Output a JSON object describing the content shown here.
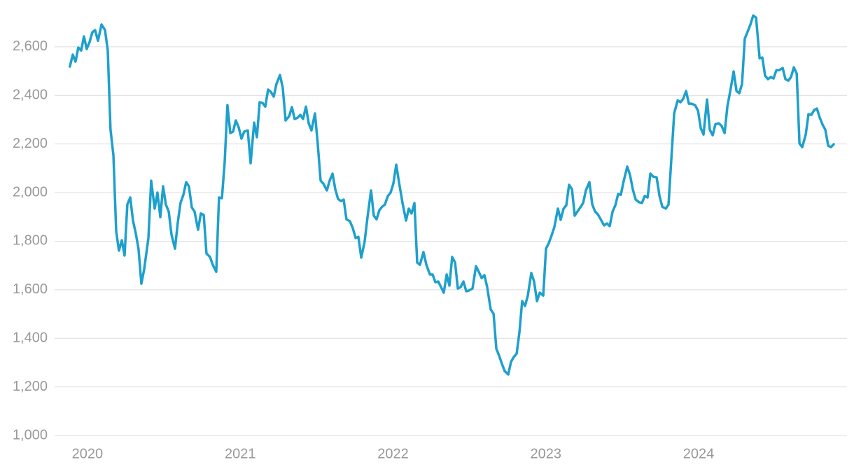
{
  "chart_data": {
    "type": "line",
    "color": "#1ea0cc",
    "grid": true,
    "xlim": [
      2019.785,
      2024.971
    ],
    "xticks": [
      2020,
      2021,
      2022,
      2023,
      2024
    ],
    "ylim": [
      1000,
      2790
    ],
    "yticks": [
      {
        "value": 1000,
        "label": "1,000"
      },
      {
        "value": 1200,
        "label": "1,200"
      },
      {
        "value": 1400,
        "label": "1,400"
      },
      {
        "value": 1600,
        "label": "1,600"
      },
      {
        "value": 1800,
        "label": "1,800"
      },
      {
        "value": 2000,
        "label": "2,000"
      },
      {
        "value": 2200,
        "label": "2,200"
      },
      {
        "value": 2400,
        "label": "2,400"
      },
      {
        "value": 2600,
        "label": "2,600"
      }
    ],
    "x": [
      2019.885,
      2019.904,
      2019.922,
      2019.94,
      2019.959,
      2019.977,
      2019.995,
      2020.014,
      2020.032,
      2020.05,
      2020.069,
      2020.092,
      2020.115,
      2020.133,
      2020.151,
      2020.17,
      2020.188,
      2020.206,
      2020.225,
      2020.243,
      2020.261,
      2020.28,
      2020.298,
      2020.316,
      2020.334,
      2020.353,
      2020.371,
      2020.399,
      2020.417,
      2020.44,
      2020.458,
      2020.477,
      2020.495,
      2020.513,
      2020.532,
      2020.55,
      2020.573,
      2020.591,
      2020.609,
      2020.628,
      2020.646,
      2020.664,
      2020.683,
      2020.701,
      2020.724,
      2020.742,
      2020.761,
      2020.779,
      2020.802,
      2020.82,
      2020.843,
      2020.861,
      2020.88,
      2020.898,
      2020.916,
      2020.935,
      2020.953,
      2020.971,
      2020.99,
      2021.008,
      2021.026,
      2021.049,
      2021.068,
      2021.091,
      2021.109,
      2021.127,
      2021.146,
      2021.164,
      2021.182,
      2021.2,
      2021.219,
      2021.237,
      2021.26,
      2021.278,
      2021.297,
      2021.32,
      2021.338,
      2021.356,
      2021.375,
      2021.393,
      2021.411,
      2021.43,
      2021.448,
      2021.466,
      2021.489,
      2021.507,
      2021.526,
      2021.544,
      2021.567,
      2021.585,
      2021.604,
      2021.622,
      2021.64,
      2021.659,
      2021.677,
      2021.695,
      2021.718,
      2021.737,
      2021.755,
      2021.773,
      2021.792,
      2021.814,
      2021.833,
      2021.856,
      2021.874,
      2021.892,
      2021.911,
      2021.929,
      2021.947,
      2021.966,
      2021.984,
      2022.002,
      2022.021,
      2022.039,
      2022.062,
      2022.085,
      2022.103,
      2022.121,
      2022.14,
      2022.158,
      2022.176,
      2022.199,
      2022.218,
      2022.241,
      2022.259,
      2022.277,
      2022.296,
      2022.314,
      2022.332,
      2022.351,
      2022.369,
      2022.387,
      2022.406,
      2022.424,
      2022.442,
      2022.461,
      2022.479,
      2022.497,
      2022.52,
      2022.543,
      2022.561,
      2022.58,
      2022.598,
      2022.616,
      2022.639,
      2022.658,
      2022.676,
      2022.694,
      2022.713,
      2022.731,
      2022.754,
      2022.772,
      2022.79,
      2022.809,
      2022.827,
      2022.845,
      2022.864,
      2022.882,
      2022.905,
      2022.923,
      2022.942,
      2022.96,
      2022.983,
      2023.001,
      2023.02,
      2023.038,
      2023.056,
      2023.079,
      2023.097,
      2023.116,
      2023.134,
      2023.152,
      2023.171,
      2023.189,
      2023.207,
      2023.226,
      2023.244,
      2023.262,
      2023.285,
      2023.304,
      2023.322,
      2023.34,
      2023.359,
      2023.381,
      2023.4,
      2023.418,
      2023.437,
      2023.455,
      2023.473,
      2023.491,
      2023.51,
      2023.533,
      2023.551,
      2023.569,
      2023.588,
      2023.611,
      2023.629,
      2023.647,
      2023.666,
      2023.684,
      2023.702,
      2023.725,
      2023.744,
      2023.762,
      2023.785,
      2023.803,
      2023.821,
      2023.84,
      2023.863,
      2023.881,
      2023.899,
      2023.918,
      2023.936,
      2023.954,
      2023.977,
      2023.996,
      2024.014,
      2024.032,
      2024.055,
      2024.073,
      2024.092,
      2024.11,
      2024.133,
      2024.151,
      2024.17,
      2024.188,
      2024.211,
      2024.229,
      2024.248,
      2024.266,
      2024.284,
      2024.302,
      2024.321,
      2024.339,
      2024.357,
      2024.376,
      2024.399,
      2024.417,
      2024.435,
      2024.454,
      2024.472,
      2024.49,
      2024.509,
      2024.527,
      2024.55,
      2024.568,
      2024.587,
      2024.605,
      2024.623,
      2024.642,
      2024.66,
      2024.678,
      2024.701,
      2024.719,
      2024.738,
      2024.756,
      2024.774,
      2024.793,
      2024.811,
      2024.829,
      2024.848,
      2024.866,
      2024.884
    ],
    "values": [
      2519,
      2568,
      2539,
      2597,
      2585,
      2643,
      2591,
      2620,
      2660,
      2669,
      2625,
      2692,
      2669,
      2585,
      2259,
      2153,
      1841,
      1761,
      1804,
      1741,
      1951,
      1980,
      1885,
      1833,
      1769,
      1625,
      1683,
      1813,
      2049,
      1934,
      2000,
      1899,
      2026,
      1951,
      1922,
      1827,
      1769,
      1876,
      1957,
      1991,
      2043,
      2026,
      1939,
      1922,
      1847,
      1914,
      1908,
      1749,
      1735,
      1703,
      1674,
      1980,
      1977,
      2124,
      2360,
      2245,
      2251,
      2297,
      2268,
      2222,
      2251,
      2256,
      2121,
      2288,
      2228,
      2372,
      2369,
      2354,
      2424,
      2415,
      2395,
      2447,
      2484,
      2432,
      2297,
      2314,
      2352,
      2303,
      2308,
      2320,
      2303,
      2354,
      2285,
      2256,
      2326,
      2202,
      2049,
      2037,
      2009,
      2049,
      2078,
      2014,
      1974,
      1965,
      1971,
      1890,
      1882,
      1853,
      1813,
      1818,
      1732,
      1798,
      1899,
      2009,
      1905,
      1890,
      1928,
      1942,
      1951,
      1986,
      2000,
      2037,
      2115,
      2043,
      1957,
      1885,
      1934,
      1914,
      1957,
      1712,
      1703,
      1755,
      1703,
      1663,
      1663,
      1631,
      1634,
      1611,
      1588,
      1663,
      1617,
      1735,
      1712,
      1605,
      1611,
      1634,
      1594,
      1597,
      1605,
      1697,
      1674,
      1648,
      1660,
      1611,
      1519,
      1501,
      1357,
      1329,
      1294,
      1265,
      1251,
      1303,
      1323,
      1337,
      1424,
      1553,
      1533,
      1576,
      1669,
      1634,
      1553,
      1588,
      1576,
      1769,
      1793,
      1824,
      1859,
      1934,
      1888,
      1934,
      1948,
      2032,
      2014,
      1905,
      1922,
      1939,
      1957,
      2009,
      2043,
      1951,
      1922,
      1911,
      1890,
      1865,
      1873,
      1862,
      1922,
      1948,
      1994,
      1991,
      2049,
      2107,
      2072,
      2014,
      1971,
      1960,
      1957,
      1986,
      1980,
      2078,
      2066,
      2063,
      1986,
      1942,
      1934,
      1951,
      2135,
      2326,
      2380,
      2372,
      2386,
      2418,
      2366,
      2366,
      2360,
      2337,
      2265,
      2239,
      2383,
      2259,
      2236,
      2282,
      2285,
      2274,
      2245,
      2354,
      2432,
      2499,
      2418,
      2409,
      2447,
      2634,
      2663,
      2692,
      2729,
      2720,
      2553,
      2556,
      2481,
      2467,
      2476,
      2470,
      2504,
      2504,
      2513,
      2467,
      2461,
      2476,
      2516,
      2490,
      2202,
      2187,
      2239,
      2323,
      2320,
      2340,
      2346,
      2308,
      2280,
      2259,
      2193,
      2187,
      2199
    ]
  }
}
